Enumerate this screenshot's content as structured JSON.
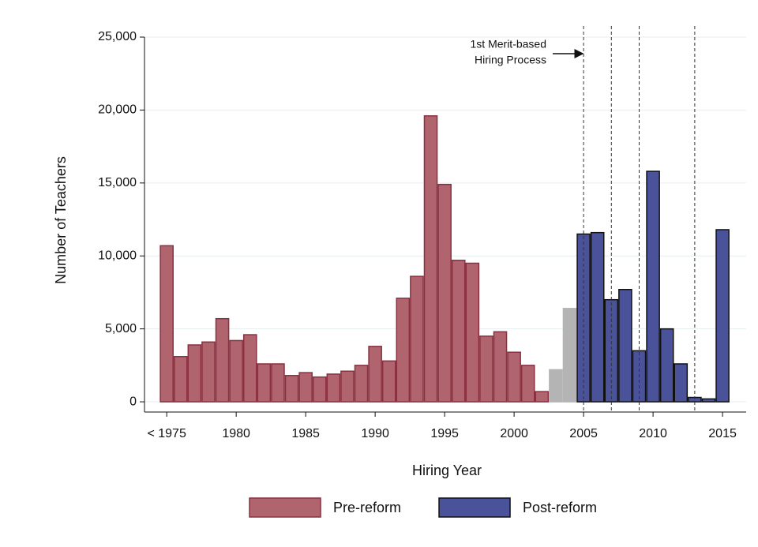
{
  "chart_data": {
    "type": "bar",
    "x": [
      1975,
      1976,
      1977,
      1978,
      1979,
      1980,
      1981,
      1982,
      1983,
      1984,
      1985,
      1986,
      1987,
      1988,
      1989,
      1990,
      1991,
      1992,
      1993,
      1994,
      1995,
      1996,
      1997,
      1998,
      1999,
      2000,
      2001,
      2002,
      2003,
      2004,
      2005,
      2006,
      2007,
      2008,
      2009,
      2010,
      2011,
      2012,
      2013,
      2014,
      2015
    ],
    "series": [
      {
        "name": "Pre-reform",
        "color": "#b0646d",
        "edge": "#8a3040",
        "values": [
          10700,
          3100,
          3900,
          4100,
          5700,
          4200,
          4600,
          2600,
          2600,
          1800,
          2000,
          1700,
          1900,
          2100,
          2500,
          3800,
          2800,
          7100,
          8600,
          19600,
          14900,
          9700,
          9500,
          4500,
          4800,
          3400,
          2500,
          700,
          null,
          null,
          null,
          null,
          null,
          null,
          null,
          null,
          null,
          null,
          null,
          null,
          null
        ]
      },
      {
        "color": "#b4b4b4",
        "edge": "#b4b4b4",
        "values": [
          null,
          null,
          null,
          null,
          null,
          null,
          null,
          null,
          null,
          null,
          null,
          null,
          null,
          null,
          null,
          null,
          null,
          null,
          null,
          null,
          null,
          null,
          null,
          null,
          null,
          null,
          null,
          null,
          2200,
          6400,
          null,
          null,
          null,
          null,
          null,
          null,
          null,
          null,
          null,
          null,
          null
        ]
      },
      {
        "name": "Post-reform",
        "color": "#4a529a",
        "edge": "#111111",
        "values": [
          null,
          null,
          null,
          null,
          null,
          null,
          null,
          null,
          null,
          null,
          null,
          null,
          null,
          null,
          null,
          null,
          null,
          null,
          null,
          null,
          null,
          null,
          null,
          null,
          null,
          null,
          null,
          null,
          null,
          null,
          11500,
          11600,
          7000,
          7700,
          3500,
          15800,
          5000,
          2600,
          300,
          200,
          11800
        ]
      }
    ],
    "xlabel": "Hiring Year",
    "ylabel": "Number of Teachers",
    "xlim": [
      1973.4,
      2016.7
    ],
    "xticks": [
      {
        "value": 1975,
        "label": "< 1975"
      },
      1980,
      1985,
      1990,
      1995,
      2000,
      2005,
      2010,
      2015
    ],
    "ylim": [
      -700,
      25000
    ],
    "yticks": [
      0,
      {
        "value": 5000,
        "label": "5,000"
      },
      {
        "value": 10000,
        "label": "10,000"
      },
      {
        "value": 15000,
        "label": "15,000"
      },
      {
        "value": 20000,
        "label": "20,000"
      },
      {
        "value": 25000,
        "label": "25,000"
      }
    ],
    "grid": true,
    "vlines": [
      2005,
      2007,
      2009,
      2013
    ],
    "annotation": [
      "1st Merit-based",
      "Hiring Process"
    ]
  }
}
